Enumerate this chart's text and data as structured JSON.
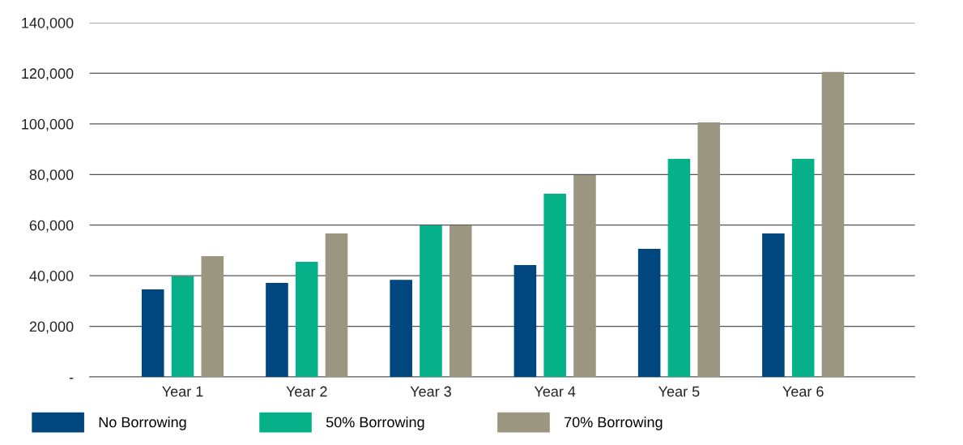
{
  "chart_data": {
    "type": "bar",
    "categories": [
      "Year 1",
      "Year 2",
      "Year 3",
      "Year 4",
      "Year 5",
      "Year 6"
    ],
    "series": [
      {
        "name": "No Borrowing",
        "color": "#00477f",
        "values": [
          34600,
          37200,
          38400,
          44200,
          50600,
          56700
        ]
      },
      {
        "name": "50% Borrowing",
        "color": "#06b189",
        "values": [
          39700,
          45500,
          59900,
          72400,
          86200,
          86200
        ]
      },
      {
        "name": "70% Borrowing",
        "color": "#9a9680",
        "values": [
          47700,
          56700,
          59900,
          79800,
          100600,
          120500
        ]
      }
    ],
    "ylim": [
      0,
      140000
    ],
    "yticks": [
      {
        "value": 0,
        "label": "-"
      },
      {
        "value": 20000,
        "label": "20,000"
      },
      {
        "value": 40000,
        "label": "40,000"
      },
      {
        "value": 60000,
        "label": "60,000"
      },
      {
        "value": 80000,
        "label": "80,000"
      },
      {
        "value": 100000,
        "label": "100,000"
      },
      {
        "value": 120000,
        "label": "120,000"
      },
      {
        "value": 140000,
        "label": "140,000"
      }
    ],
    "grid": "y",
    "legend": "bottom left"
  }
}
